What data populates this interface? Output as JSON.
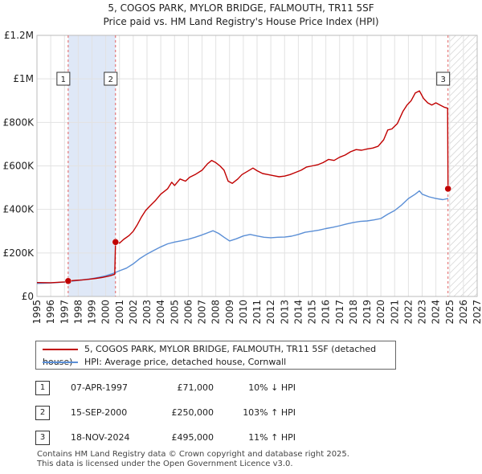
{
  "chart_data": {
    "type": "line",
    "title": "5, COGOS PARK, MYLOR BRIDGE, FALMOUTH, TR11 5SF",
    "subtitle": "Price paid vs. HM Land Registry's House Price Index (HPI)",
    "xlabel": "",
    "ylabel": "",
    "xlim": [
      1995,
      2027
    ],
    "ylim": [
      0,
      1200000
    ],
    "x_ticks": [
      "1995",
      "1996",
      "1997",
      "1998",
      "1999",
      "2000",
      "2001",
      "2002",
      "2003",
      "2004",
      "2005",
      "2006",
      "2007",
      "2008",
      "2009",
      "2010",
      "2011",
      "2012",
      "2013",
      "2014",
      "2015",
      "2016",
      "2017",
      "2018",
      "2019",
      "2020",
      "2021",
      "2022",
      "2023",
      "2024",
      "2025",
      "2026",
      "2027"
    ],
    "y_ticks": [
      {
        "value": 0,
        "label": "£0"
      },
      {
        "value": 200000,
        "label": "£200K"
      },
      {
        "value": 400000,
        "label": "£400K"
      },
      {
        "value": 600000,
        "label": "£600K"
      },
      {
        "value": 800000,
        "label": "£800K"
      },
      {
        "value": 1000000,
        "label": "£1M"
      },
      {
        "value": 1200000,
        "label": "£1.2M"
      }
    ],
    "grid": true,
    "forecast_hatch_from": 2025.0,
    "highlight_band": [
      1997.27,
      2000.71
    ],
    "series": [
      {
        "name": "5, COGOS PARK, MYLOR BRIDGE, FALMOUTH, TR11 5SF (detached house)",
        "color": "#c00000",
        "points": [
          [
            1995.0,
            64000
          ],
          [
            1995.5,
            63500
          ],
          [
            1996.0,
            63000
          ],
          [
            1996.5,
            65000
          ],
          [
            1997.0,
            67000
          ],
          [
            1997.27,
            71000
          ],
          [
            1997.8,
            74000
          ],
          [
            1998.3,
            76000
          ],
          [
            1998.8,
            79000
          ],
          [
            1999.3,
            83000
          ],
          [
            1999.8,
            88000
          ],
          [
            2000.3,
            95000
          ],
          [
            2000.65,
            102000
          ],
          [
            2000.71,
            250000
          ],
          [
            2001.0,
            245000
          ],
          [
            2001.3,
            262000
          ],
          [
            2001.7,
            280000
          ],
          [
            2002.0,
            300000
          ],
          [
            2002.3,
            330000
          ],
          [
            2002.6,
            365000
          ],
          [
            2002.9,
            395000
          ],
          [
            2003.2,
            415000
          ],
          [
            2003.6,
            440000
          ],
          [
            2004.0,
            470000
          ],
          [
            2004.5,
            495000
          ],
          [
            2004.8,
            525000
          ],
          [
            2005.0,
            510000
          ],
          [
            2005.4,
            540000
          ],
          [
            2005.8,
            530000
          ],
          [
            2006.1,
            548000
          ],
          [
            2006.5,
            560000
          ],
          [
            2007.0,
            580000
          ],
          [
            2007.4,
            610000
          ],
          [
            2007.7,
            625000
          ],
          [
            2008.0,
            615000
          ],
          [
            2008.3,
            600000
          ],
          [
            2008.6,
            580000
          ],
          [
            2008.9,
            530000
          ],
          [
            2009.2,
            520000
          ],
          [
            2009.6,
            540000
          ],
          [
            2009.9,
            560000
          ],
          [
            2010.3,
            575000
          ],
          [
            2010.7,
            590000
          ],
          [
            2011.0,
            578000
          ],
          [
            2011.4,
            565000
          ],
          [
            2011.8,
            560000
          ],
          [
            2012.2,
            555000
          ],
          [
            2012.6,
            550000
          ],
          [
            2013.0,
            553000
          ],
          [
            2013.4,
            560000
          ],
          [
            2013.8,
            570000
          ],
          [
            2014.2,
            580000
          ],
          [
            2014.6,
            595000
          ],
          [
            2015.0,
            600000
          ],
          [
            2015.4,
            605000
          ],
          [
            2015.8,
            615000
          ],
          [
            2016.2,
            630000
          ],
          [
            2016.6,
            625000
          ],
          [
            2017.0,
            640000
          ],
          [
            2017.4,
            650000
          ],
          [
            2017.8,
            665000
          ],
          [
            2018.2,
            675000
          ],
          [
            2018.6,
            672000
          ],
          [
            2019.0,
            678000
          ],
          [
            2019.4,
            682000
          ],
          [
            2019.8,
            690000
          ],
          [
            2020.2,
            720000
          ],
          [
            2020.5,
            765000
          ],
          [
            2020.8,
            770000
          ],
          [
            2021.2,
            795000
          ],
          [
            2021.6,
            850000
          ],
          [
            2021.9,
            880000
          ],
          [
            2022.2,
            900000
          ],
          [
            2022.5,
            935000
          ],
          [
            2022.8,
            945000
          ],
          [
            2023.1,
            910000
          ],
          [
            2023.4,
            890000
          ],
          [
            2023.7,
            880000
          ],
          [
            2024.0,
            890000
          ],
          [
            2024.3,
            880000
          ],
          [
            2024.6,
            870000
          ],
          [
            2024.85,
            865000
          ],
          [
            2024.88,
            495000
          ],
          [
            2025.0,
            490000
          ]
        ]
      },
      {
        "name": "HPI: Average price, detached house, Cornwall",
        "color": "#5b8fd6",
        "points": [
          [
            1995.0,
            60000
          ],
          [
            1995.5,
            61000
          ],
          [
            1996.0,
            62000
          ],
          [
            1996.5,
            64000
          ],
          [
            1997.0,
            66000
          ],
          [
            1997.5,
            70000
          ],
          [
            1998.0,
            74000
          ],
          [
            1998.5,
            78000
          ],
          [
            1999.0,
            82000
          ],
          [
            1999.5,
            88000
          ],
          [
            2000.0,
            95000
          ],
          [
            2000.5,
            105000
          ],
          [
            2001.0,
            118000
          ],
          [
            2001.5,
            130000
          ],
          [
            2002.0,
            150000
          ],
          [
            2002.5,
            175000
          ],
          [
            2003.0,
            195000
          ],
          [
            2003.5,
            212000
          ],
          [
            2004.0,
            228000
          ],
          [
            2004.5,
            242000
          ],
          [
            2005.0,
            250000
          ],
          [
            2005.5,
            256000
          ],
          [
            2006.0,
            263000
          ],
          [
            2006.5,
            272000
          ],
          [
            2007.0,
            283000
          ],
          [
            2007.5,
            295000
          ],
          [
            2007.8,
            302000
          ],
          [
            2008.2,
            290000
          ],
          [
            2008.6,
            272000
          ],
          [
            2009.0,
            255000
          ],
          [
            2009.5,
            265000
          ],
          [
            2010.0,
            278000
          ],
          [
            2010.5,
            285000
          ],
          [
            2011.0,
            278000
          ],
          [
            2011.5,
            272000
          ],
          [
            2012.0,
            270000
          ],
          [
            2012.5,
            272000
          ],
          [
            2013.0,
            273000
          ],
          [
            2013.5,
            277000
          ],
          [
            2014.0,
            285000
          ],
          [
            2014.5,
            295000
          ],
          [
            2015.0,
            300000
          ],
          [
            2015.5,
            305000
          ],
          [
            2016.0,
            312000
          ],
          [
            2016.5,
            318000
          ],
          [
            2017.0,
            325000
          ],
          [
            2017.5,
            333000
          ],
          [
            2018.0,
            340000
          ],
          [
            2018.5,
            345000
          ],
          [
            2019.0,
            347000
          ],
          [
            2019.5,
            352000
          ],
          [
            2020.0,
            358000
          ],
          [
            2020.5,
            378000
          ],
          [
            2021.0,
            395000
          ],
          [
            2021.5,
            420000
          ],
          [
            2022.0,
            450000
          ],
          [
            2022.5,
            470000
          ],
          [
            2022.8,
            485000
          ],
          [
            2023.0,
            470000
          ],
          [
            2023.5,
            458000
          ],
          [
            2024.0,
            450000
          ],
          [
            2024.5,
            445000
          ],
          [
            2024.9,
            450000
          ]
        ]
      }
    ],
    "transactions": [
      {
        "num": "1",
        "date": "07-APR-1997",
        "x": 1997.27,
        "price": 71000,
        "price_label": "£71,000",
        "hpi": "10% ↓ HPI"
      },
      {
        "num": "2",
        "date": "15-SEP-2000",
        "x": 2000.71,
        "price": 250000,
        "price_label": "£250,000",
        "hpi": "103% ↑ HPI"
      },
      {
        "num": "3",
        "date": "18-NOV-2024",
        "x": 2024.88,
        "price": 495000,
        "price_label": "£495,000",
        "hpi": "11% ↑ HPI"
      }
    ]
  },
  "legend": {
    "property": "5, COGOS PARK, MYLOR BRIDGE, FALMOUTH, TR11 5SF (detached house)",
    "hpi": "HPI: Average price, detached house, Cornwall"
  },
  "footer": {
    "line1": "Contains HM Land Registry data © Crown copyright and database right 2025.",
    "line2": "This data is licensed under the Open Government Licence v3.0."
  }
}
